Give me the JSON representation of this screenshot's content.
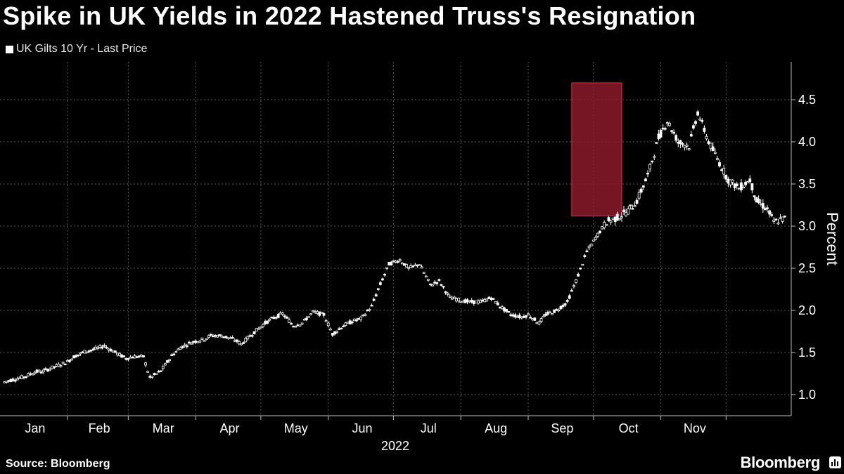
{
  "title": "Spike in UK Yields in 2022 Hastened Truss's Resignation",
  "source": "Source: Bloomberg",
  "brand": "Bloomberg",
  "colors": {
    "background": "#000000",
    "candles": "#ffffff",
    "highlight": "#8b1a2b",
    "highlight_border": "#e0303c",
    "grid": "#555555"
  },
  "brand_icon": "bloomberg-chart-icon",
  "chart_data": {
    "type": "candlestick",
    "legend": "UK Gilts 10 Yr - Last Price",
    "ylabel": "Percent",
    "xlabel": "2022",
    "y_axis_side": "right",
    "ylim": [
      0.75,
      4.95
    ],
    "yticks": [
      "1.0",
      "1.5",
      "2.0",
      "2.5",
      "3.0",
      "3.5",
      "4.0",
      "4.5"
    ],
    "months": [
      "Jan",
      "Feb",
      "Mar",
      "Apr",
      "May",
      "Jun",
      "Jul",
      "Aug",
      "Sep",
      "Oct",
      "Nov"
    ],
    "grid": true,
    "highlight": {
      "x_start": "Sep 21",
      "x_end": "Oct 14",
      "y_min": 3.12,
      "y_max": 4.7
    },
    "series_close": [
      [
        "2022-01-03",
        1.15
      ],
      [
        "2022-01-07",
        1.18
      ],
      [
        "2022-01-12",
        1.21
      ],
      [
        "2022-01-17",
        1.27
      ],
      [
        "2022-01-21",
        1.28
      ],
      [
        "2022-01-26",
        1.33
      ],
      [
        "2022-02-01",
        1.39
      ],
      [
        "2022-02-04",
        1.45
      ],
      [
        "2022-02-09",
        1.51
      ],
      [
        "2022-02-15",
        1.55
      ],
      [
        "2022-02-18",
        1.58
      ],
      [
        "2022-02-23",
        1.5
      ],
      [
        "2022-02-28",
        1.43
      ],
      [
        "2022-03-03",
        1.45
      ],
      [
        "2022-03-08",
        1.45
      ],
      [
        "2022-03-11",
        1.2
      ],
      [
        "2022-03-16",
        1.28
      ],
      [
        "2022-03-21",
        1.46
      ],
      [
        "2022-03-25",
        1.56
      ],
      [
        "2022-03-30",
        1.62
      ],
      [
        "2022-04-05",
        1.66
      ],
      [
        "2022-04-08",
        1.7
      ],
      [
        "2022-04-13",
        1.7
      ],
      [
        "2022-04-19",
        1.65
      ],
      [
        "2022-04-22",
        1.6
      ],
      [
        "2022-04-27",
        1.72
      ],
      [
        "2022-05-03",
        1.85
      ],
      [
        "2022-05-06",
        1.9
      ],
      [
        "2022-05-11",
        1.96
      ],
      [
        "2022-05-16",
        1.82
      ],
      [
        "2022-05-20",
        1.85
      ],
      [
        "2022-05-25",
        1.98
      ],
      [
        "2022-05-30",
        1.95
      ],
      [
        "2022-06-03",
        1.72
      ],
      [
        "2022-06-08",
        1.82
      ],
      [
        "2022-06-13",
        1.88
      ],
      [
        "2022-06-16",
        1.9
      ],
      [
        "2022-06-21",
        2.05
      ],
      [
        "2022-06-24",
        2.25
      ],
      [
        "2022-06-29",
        2.55
      ],
      [
        "2022-07-04",
        2.6
      ],
      [
        "2022-07-08",
        2.5
      ],
      [
        "2022-07-13",
        2.55
      ],
      [
        "2022-07-18",
        2.3
      ],
      [
        "2022-07-22",
        2.35
      ],
      [
        "2022-07-27",
        2.15
      ],
      [
        "2022-08-01",
        2.12
      ],
      [
        "2022-08-05",
        2.1
      ],
      [
        "2022-08-10",
        2.1
      ],
      [
        "2022-08-15",
        2.15
      ],
      [
        "2022-08-19",
        2.05
      ],
      [
        "2022-08-24",
        1.95
      ],
      [
        "2022-08-29",
        1.92
      ],
      [
        "2022-09-01",
        1.95
      ],
      [
        "2022-09-06",
        1.85
      ],
      [
        "2022-09-09",
        1.95
      ],
      [
        "2022-09-14",
        2.0
      ],
      [
        "2022-09-19",
        2.1
      ],
      [
        "2022-09-23",
        2.35
      ],
      [
        "2022-09-28",
        2.7
      ],
      [
        "2022-10-03",
        2.9
      ],
      [
        "2022-10-07",
        3.05
      ],
      [
        "2022-10-12",
        3.1
      ],
      [
        "2022-10-17",
        3.18
      ],
      [
        "2022-10-21",
        3.3
      ],
      [
        "2022-10-26",
        3.6
      ],
      [
        "2022-10-31",
        4.05
      ],
      [
        "2022-11-04",
        4.25
      ],
      [
        "2022-11-09",
        4.0
      ],
      [
        "2022-11-14",
        3.95
      ],
      [
        "2022-11-18",
        4.35
      ],
      [
        "2022-11-23",
        4.0
      ],
      [
        "2022-11-28",
        3.75
      ],
      [
        "2022-12-02",
        3.55
      ],
      [
        "2022-12-07",
        3.45
      ],
      [
        "2022-12-12",
        3.55
      ],
      [
        "2022-12-15",
        3.3
      ],
      [
        "2022-12-20",
        3.2
      ],
      [
        "2022-12-23",
        3.05
      ],
      [
        "2022-12-29",
        3.1
      ]
    ]
  }
}
